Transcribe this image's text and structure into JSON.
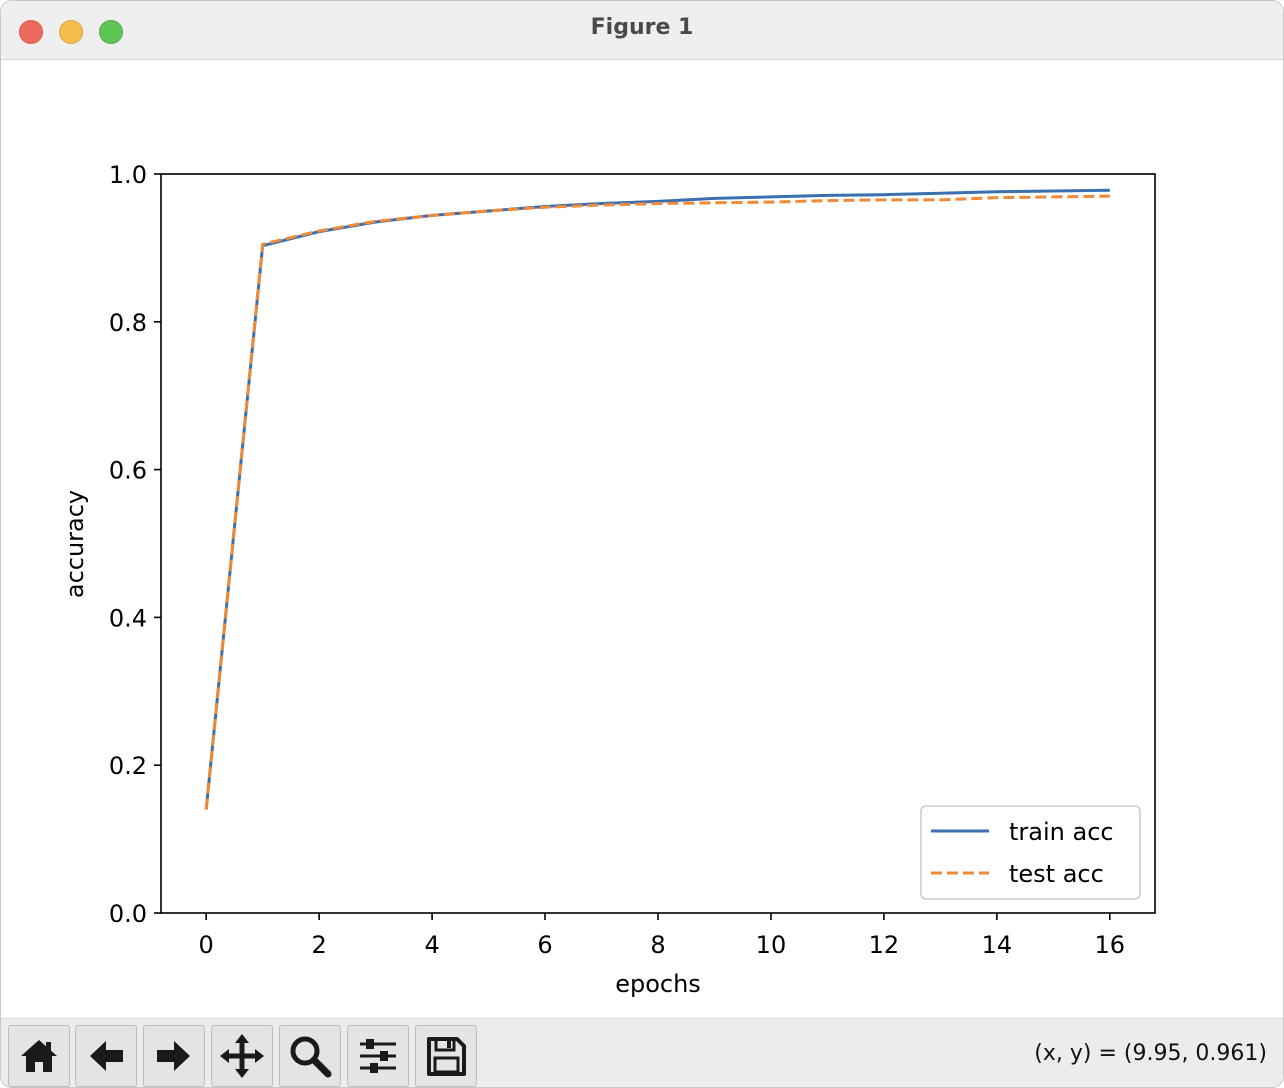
{
  "window": {
    "title": "Figure 1"
  },
  "toolbar": {
    "buttons": [
      {
        "name": "home",
        "icon": "home-icon"
      },
      {
        "name": "back",
        "icon": "arrow-left-icon"
      },
      {
        "name": "forward",
        "icon": "arrow-right-icon"
      },
      {
        "name": "pan",
        "icon": "move-icon"
      },
      {
        "name": "zoom",
        "icon": "magnifier-icon"
      },
      {
        "name": "configure-subplots",
        "icon": "sliders-icon"
      },
      {
        "name": "save",
        "icon": "floppy-disk-icon"
      }
    ],
    "coords_text": "(x, y) = (9.95, 0.961)"
  },
  "chart_data": {
    "type": "line",
    "title": "",
    "xlabel": "epochs",
    "ylabel": "accuracy",
    "xlim": [
      -0.8,
      16.8
    ],
    "ylim": [
      0.0,
      1.0
    ],
    "xticks": [
      0,
      2,
      4,
      6,
      8,
      10,
      12,
      14,
      16
    ],
    "xtick_labels": [
      "0",
      "2",
      "4",
      "6",
      "8",
      "10",
      "12",
      "14",
      "16"
    ],
    "yticks": [
      0.0,
      0.2,
      0.4,
      0.6,
      0.8,
      1.0
    ],
    "ytick_labels": [
      "0.0",
      "0.2",
      "0.4",
      "0.6",
      "0.8",
      "1.0"
    ],
    "grid": false,
    "legend_position": "lower-right",
    "x": [
      0,
      1,
      2,
      3,
      4,
      5,
      6,
      7,
      8,
      9,
      10,
      11,
      12,
      13,
      14,
      15,
      16
    ],
    "series": [
      {
        "name": "train acc",
        "style": "solid",
        "color": "#3a6fb0",
        "values": [
          0.14,
          0.903,
          0.922,
          0.935,
          0.944,
          0.95,
          0.956,
          0.96,
          0.963,
          0.967,
          0.969,
          0.971,
          0.972,
          0.974,
          0.976,
          0.977,
          0.978
        ]
      },
      {
        "name": "test acc",
        "style": "dashed",
        "color": "#ef8a3a",
        "values": [
          0.14,
          0.905,
          0.923,
          0.936,
          0.944,
          0.95,
          0.955,
          0.958,
          0.96,
          0.961,
          0.962,
          0.964,
          0.965,
          0.965,
          0.968,
          0.969,
          0.97
        ]
      }
    ]
  }
}
